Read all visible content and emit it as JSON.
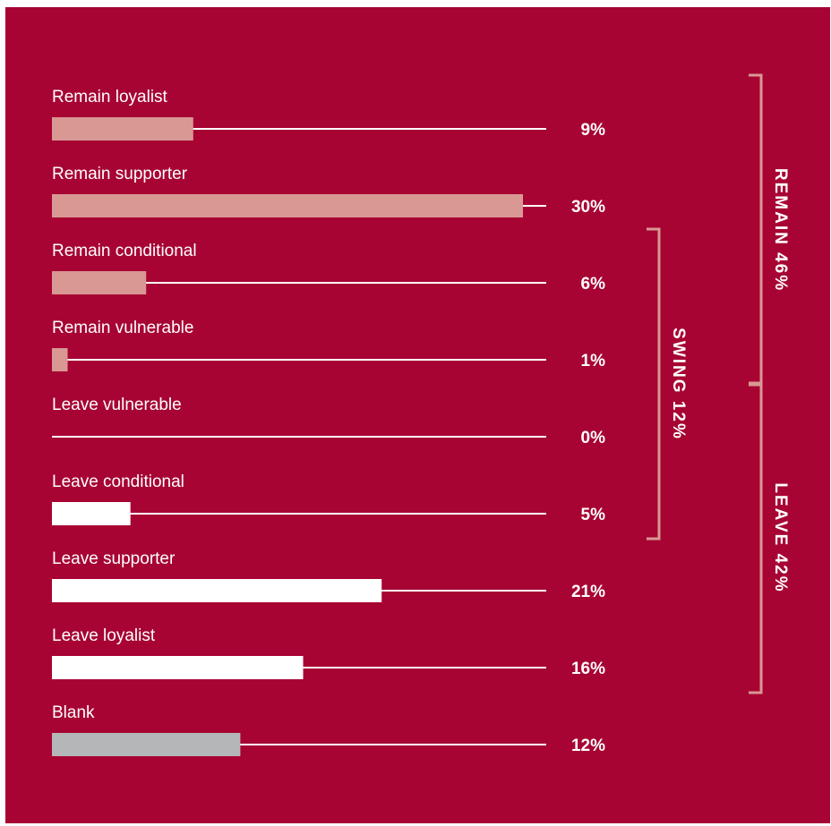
{
  "colors": {
    "background": "#a70433",
    "remain_bar": "#d99894",
    "leave_bar": "#ffffff",
    "blank_bar": "#b4b6b8",
    "bracket": "#d99894",
    "line": "#ffffff"
  },
  "chart_data": {
    "type": "bar",
    "orientation": "horizontal",
    "categories": [
      "Remain loyalist",
      "Remain supporter",
      "Remain conditional",
      "Remain vulnerable",
      "Leave vulnerable",
      "Leave conditional",
      "Leave supporter",
      "Leave loyalist",
      "Blank"
    ],
    "values": [
      9,
      30,
      6,
      1,
      0,
      5,
      21,
      16,
      12
    ],
    "value_labels": [
      "9%",
      "30%",
      "6%",
      "1%",
      "0%",
      "5%",
      "21%",
      "16%",
      "12%"
    ],
    "bar_groups": [
      "remain",
      "remain",
      "remain",
      "remain",
      "leave",
      "leave",
      "leave",
      "leave",
      "blank"
    ],
    "xlim": [
      0,
      30
    ],
    "grid": false,
    "legend": "none",
    "brackets": [
      {
        "label": "REMAIN 46%",
        "from": 0,
        "to": 3,
        "column": "outer"
      },
      {
        "label": "SWING 12%",
        "from": 2,
        "to": 5,
        "column": "inner"
      },
      {
        "label": "LEAVE 42%",
        "from": 4,
        "to": 7,
        "column": "outer"
      }
    ]
  }
}
